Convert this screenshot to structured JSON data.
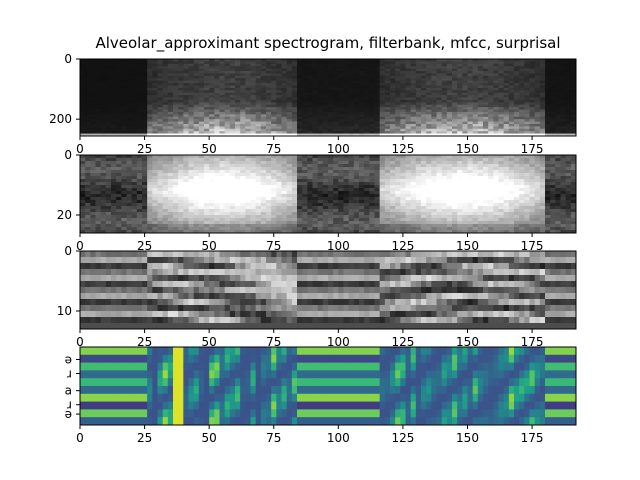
{
  "chart_data": [
    {
      "type": "heatmap",
      "panel": "spectrogram",
      "title": "Alveolar_approximant spectrogram, filterbank, mfcc, surprisal",
      "colormap": "gray",
      "xlim": [
        0,
        192
      ],
      "ylim": [
        256,
        0
      ],
      "x_ticks": [
        "0",
        "25",
        "50",
        "75",
        "100",
        "125",
        "150",
        "175"
      ],
      "y_ticks": [
        "0",
        "200"
      ],
      "y_tick_values": [
        0,
        200
      ]
    },
    {
      "type": "heatmap",
      "panel": "filterbank",
      "colormap": "gray",
      "xlim": [
        0,
        192
      ],
      "ylim": [
        26,
        0
      ],
      "x_ticks": [
        "0",
        "25",
        "50",
        "75",
        "100",
        "125",
        "150",
        "175"
      ],
      "y_ticks": [
        "0",
        "20"
      ],
      "y_tick_values": [
        0,
        20
      ]
    },
    {
      "type": "heatmap",
      "panel": "mfcc",
      "colormap": "gray",
      "xlim": [
        0,
        192
      ],
      "ylim": [
        13,
        0
      ],
      "x_ticks": [
        "0",
        "25",
        "50",
        "75",
        "100",
        "125",
        "150",
        "175"
      ],
      "y_ticks": [
        "0",
        "10"
      ],
      "y_tick_values": [
        0,
        10
      ]
    },
    {
      "type": "heatmap",
      "panel": "surprisal",
      "colormap": "viridis",
      "xlim": [
        0,
        192
      ],
      "ylim": [
        5,
        0
      ],
      "x_ticks": [
        "0",
        "25",
        "50",
        "75",
        "100",
        "125",
        "150",
        "175"
      ],
      "y_ticks": [
        "ə",
        "ɹ",
        "a",
        "ɹ",
        "ə"
      ],
      "y_tick_values": [
        0.8,
        1.7,
        2.8,
        3.7,
        4.3
      ]
    }
  ]
}
